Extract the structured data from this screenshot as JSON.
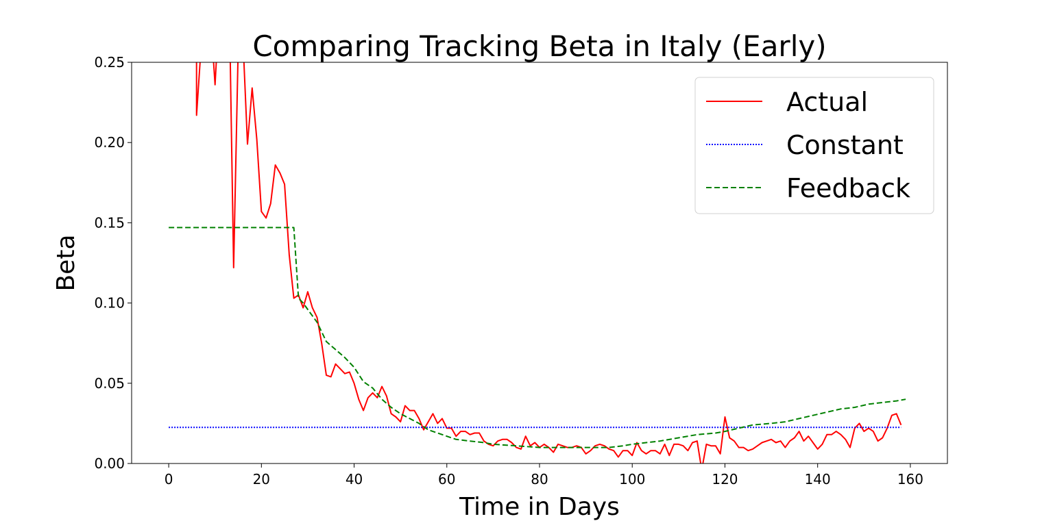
{
  "chart_data": {
    "type": "line",
    "title": "Comparing Tracking Beta in Italy (Early)",
    "xlabel": "Time in Days",
    "ylabel": "Beta",
    "xlim": [
      -8,
      168
    ],
    "ylim": [
      0,
      0.25
    ],
    "xticks": [
      0,
      20,
      40,
      60,
      80,
      100,
      120,
      140,
      160
    ],
    "yticks": [
      0,
      0.05,
      0.1,
      0.15,
      0.2,
      0.25
    ],
    "xtick_labels": [
      "0",
      "20",
      "40",
      "60",
      "80",
      "100",
      "120",
      "140",
      "160"
    ],
    "ytick_labels": [
      "0.00",
      "0.05",
      "0.10",
      "0.15",
      "0.20",
      "0.25"
    ],
    "grid": false,
    "legend_position": "top-right",
    "series": [
      {
        "name": "Actual",
        "color": "#ff0000",
        "style": "solid",
        "points": [
          [
            6,
            0.27
          ],
          [
            6,
            0.217
          ],
          [
            7,
            0.26
          ],
          [
            8,
            0.3
          ],
          [
            9,
            0.28
          ],
          [
            10,
            0.236
          ],
          [
            11,
            0.29
          ],
          [
            13,
            0.3
          ],
          [
            14,
            0.122
          ],
          [
            15,
            0.26
          ],
          [
            16,
            0.265
          ],
          [
            17,
            0.199
          ],
          [
            18,
            0.234
          ],
          [
            19,
            0.202
          ],
          [
            20,
            0.157
          ],
          [
            21,
            0.153
          ],
          [
            22,
            0.162
          ],
          [
            23,
            0.186
          ],
          [
            24,
            0.181
          ],
          [
            25,
            0.174
          ],
          [
            26,
            0.13
          ],
          [
            27,
            0.103
          ],
          [
            28,
            0.105
          ],
          [
            29,
            0.097
          ],
          [
            30,
            0.107
          ],
          [
            31,
            0.097
          ],
          [
            32,
            0.091
          ],
          [
            33,
            0.075
          ],
          [
            34,
            0.055
          ],
          [
            35,
            0.054
          ],
          [
            36,
            0.062
          ],
          [
            37,
            0.059
          ],
          [
            38,
            0.056
          ],
          [
            39,
            0.057
          ],
          [
            40,
            0.05
          ],
          [
            41,
            0.04
          ],
          [
            42,
            0.033
          ],
          [
            43,
            0.041
          ],
          [
            44,
            0.044
          ],
          [
            45,
            0.041
          ],
          [
            46,
            0.048
          ],
          [
            47,
            0.042
          ],
          [
            48,
            0.031
          ],
          [
            49,
            0.029
          ],
          [
            50,
            0.026
          ],
          [
            51,
            0.036
          ],
          [
            52,
            0.033
          ],
          [
            53,
            0.033
          ],
          [
            54,
            0.028
          ],
          [
            55,
            0.021
          ],
          [
            56,
            0.026
          ],
          [
            57,
            0.031
          ],
          [
            58,
            0.025
          ],
          [
            59,
            0.028
          ],
          [
            60,
            0.022
          ],
          [
            61,
            0.022
          ],
          [
            62,
            0.017
          ],
          [
            63,
            0.02
          ],
          [
            64,
            0.02
          ],
          [
            65,
            0.018
          ],
          [
            66,
            0.019
          ],
          [
            67,
            0.019
          ],
          [
            68,
            0.014
          ],
          [
            69,
            0.012
          ],
          [
            70,
            0.011
          ],
          [
            71,
            0.014
          ],
          [
            72,
            0.015
          ],
          [
            73,
            0.015
          ],
          [
            74,
            0.013
          ],
          [
            75,
            0.01
          ],
          [
            76,
            0.009
          ],
          [
            77,
            0.017
          ],
          [
            78,
            0.011
          ],
          [
            79,
            0.013
          ],
          [
            80,
            0.01
          ],
          [
            81,
            0.012
          ],
          [
            82,
            0.01
          ],
          [
            83,
            0.007
          ],
          [
            84,
            0.012
          ],
          [
            85,
            0.011
          ],
          [
            86,
            0.01
          ],
          [
            87,
            0.01
          ],
          [
            88,
            0.011
          ],
          [
            89,
            0.01
          ],
          [
            90,
            0.006
          ],
          [
            91,
            0.008
          ],
          [
            92,
            0.011
          ],
          [
            93,
            0.012
          ],
          [
            94,
            0.011
          ],
          [
            95,
            0.009
          ],
          [
            96,
            0.008
          ],
          [
            97,
            0.004
          ],
          [
            98,
            0.008
          ],
          [
            99,
            0.008
          ],
          [
            100,
            0.005
          ],
          [
            101,
            0.013
          ],
          [
            102,
            0.008
          ],
          [
            103,
            0.006
          ],
          [
            104,
            0.008
          ],
          [
            105,
            0.008
          ],
          [
            106,
            0.006
          ],
          [
            107,
            0.012
          ],
          [
            108,
            0.005
          ],
          [
            109,
            0.012
          ],
          [
            110,
            0.012
          ],
          [
            111,
            0.011
          ],
          [
            112,
            0.008
          ],
          [
            113,
            0.013
          ],
          [
            114,
            0.014
          ],
          [
            115,
            -0.004
          ],
          [
            116,
            0.012
          ],
          [
            117,
            0.011
          ],
          [
            118,
            0.011
          ],
          [
            119,
            0.006
          ],
          [
            120,
            0.029
          ],
          [
            121,
            0.016
          ],
          [
            122,
            0.014
          ],
          [
            123,
            0.01
          ],
          [
            124,
            0.01
          ],
          [
            125,
            0.008
          ],
          [
            126,
            0.009
          ],
          [
            127,
            0.011
          ],
          [
            128,
            0.013
          ],
          [
            129,
            0.014
          ],
          [
            130,
            0.015
          ],
          [
            131,
            0.013
          ],
          [
            132,
            0.014
          ],
          [
            133,
            0.01
          ],
          [
            134,
            0.014
          ],
          [
            135,
            0.016
          ],
          [
            136,
            0.02
          ],
          [
            137,
            0.014
          ],
          [
            138,
            0.017
          ],
          [
            139,
            0.013
          ],
          [
            140,
            0.009
          ],
          [
            141,
            0.012
          ],
          [
            142,
            0.018
          ],
          [
            143,
            0.018
          ],
          [
            144,
            0.02
          ],
          [
            145,
            0.018
          ],
          [
            146,
            0.015
          ],
          [
            147,
            0.01
          ],
          [
            148,
            0.022
          ],
          [
            149,
            0.025
          ],
          [
            150,
            0.02
          ],
          [
            151,
            0.022
          ],
          [
            152,
            0.02
          ],
          [
            153,
            0.014
          ],
          [
            154,
            0.016
          ],
          [
            155,
            0.022
          ],
          [
            156,
            0.03
          ],
          [
            157,
            0.031
          ],
          [
            158,
            0.024
          ]
        ]
      },
      {
        "name": "Constant",
        "color": "#0000ff",
        "style": "dotted",
        "points": [
          [
            0,
            0.0225
          ],
          [
            158,
            0.0225
          ]
        ]
      },
      {
        "name": "Feedback",
        "color": "#008000",
        "style": "dashed",
        "points": [
          [
            0,
            0.147
          ],
          [
            27,
            0.147
          ],
          [
            28,
            0.103
          ],
          [
            29,
            0.1
          ],
          [
            30,
            0.096
          ],
          [
            32,
            0.088
          ],
          [
            34,
            0.076
          ],
          [
            36,
            0.071
          ],
          [
            38,
            0.066
          ],
          [
            40,
            0.06
          ],
          [
            42,
            0.051
          ],
          [
            44,
            0.047
          ],
          [
            46,
            0.04
          ],
          [
            48,
            0.035
          ],
          [
            50,
            0.031
          ],
          [
            52,
            0.028
          ],
          [
            54,
            0.025
          ],
          [
            56,
            0.021
          ],
          [
            58,
            0.019
          ],
          [
            60,
            0.017
          ],
          [
            62,
            0.015
          ],
          [
            65,
            0.014
          ],
          [
            68,
            0.013
          ],
          [
            70,
            0.012
          ],
          [
            75,
            0.011
          ],
          [
            80,
            0.01
          ],
          [
            85,
            0.01
          ],
          [
            90,
            0.01
          ],
          [
            95,
            0.01
          ],
          [
            98,
            0.011
          ],
          [
            100,
            0.012
          ],
          [
            103,
            0.013
          ],
          [
            106,
            0.014
          ],
          [
            110,
            0.016
          ],
          [
            114,
            0.018
          ],
          [
            118,
            0.019
          ],
          [
            120,
            0.02
          ],
          [
            123,
            0.022
          ],
          [
            126,
            0.024
          ],
          [
            130,
            0.025
          ],
          [
            133,
            0.026
          ],
          [
            136,
            0.028
          ],
          [
            139,
            0.03
          ],
          [
            142,
            0.032
          ],
          [
            145,
            0.034
          ],
          [
            148,
            0.035
          ],
          [
            151,
            0.037
          ],
          [
            154,
            0.038
          ],
          [
            157,
            0.039
          ],
          [
            159,
            0.04
          ]
        ]
      }
    ]
  }
}
